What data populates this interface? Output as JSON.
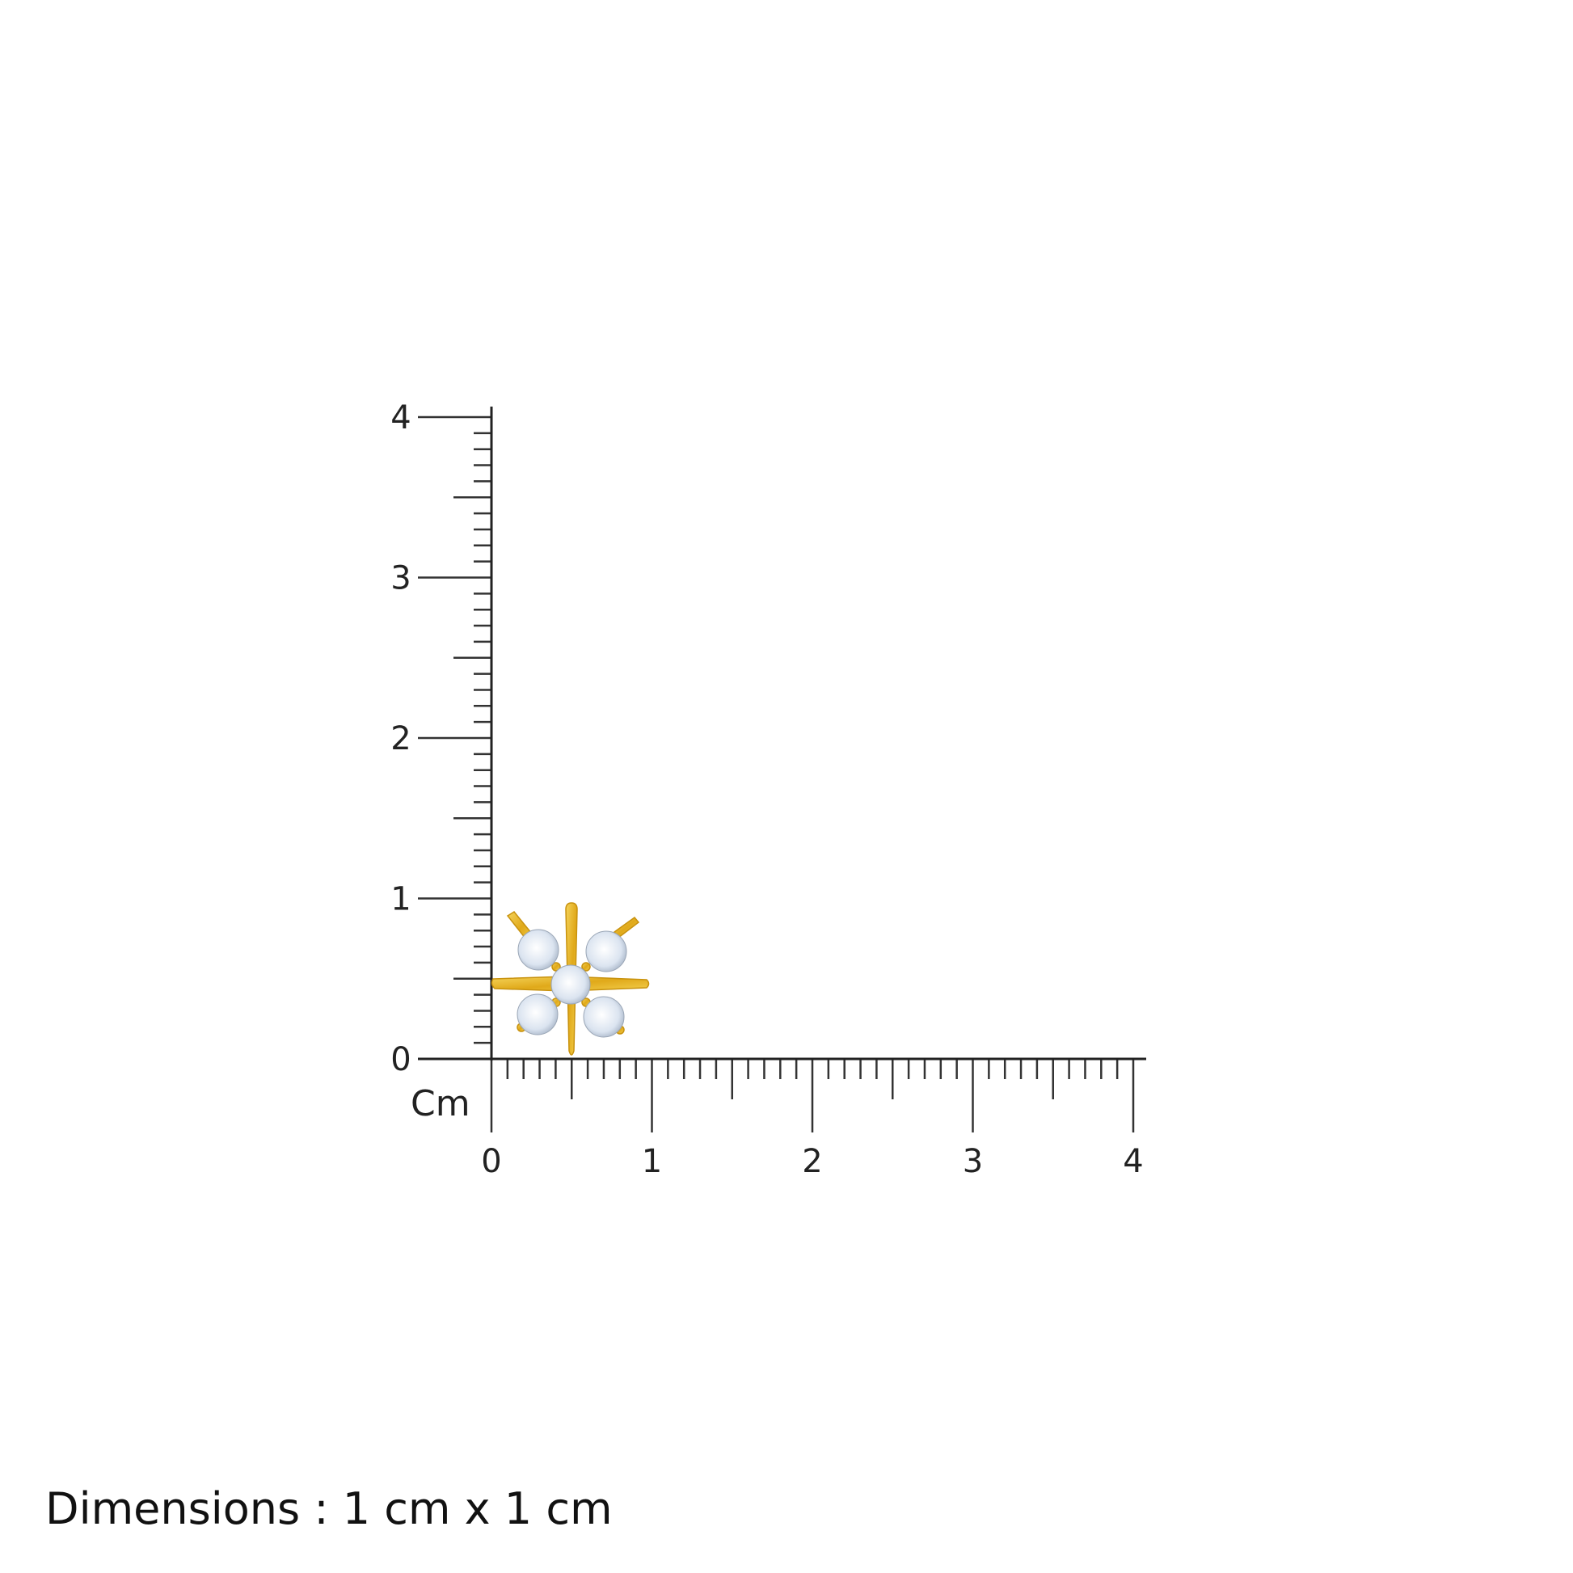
{
  "ruler": {
    "unit_label": "Cm",
    "x_labels": [
      "0",
      "1",
      "2",
      "3",
      "4"
    ],
    "y_labels": [
      "0",
      "1",
      "2",
      "3",
      "4"
    ],
    "range_cm": [
      0,
      4
    ],
    "minor_step_cm": 0.1
  },
  "product": {
    "name_icon": "star-cross-stud-earring-with-five-stones",
    "metal_color": "#e8b923",
    "stone_color": "#dfe8f3",
    "width_cm": 1,
    "height_cm": 1
  },
  "caption": "Dimensions : 1 cm x 1 cm"
}
